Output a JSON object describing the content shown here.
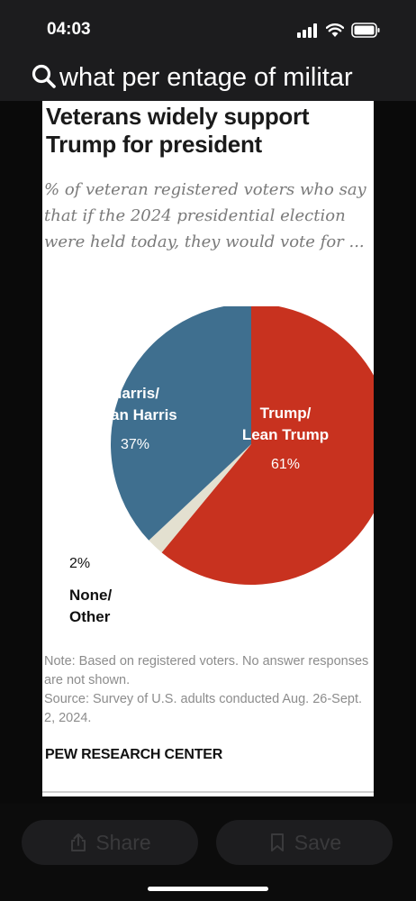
{
  "status": {
    "time": "04:03"
  },
  "search": {
    "query": "what per entage of militar"
  },
  "chart": {
    "title": "Veterans widely support Trump for president",
    "subtitle": "% of veteran registered voters who say that if the 2024 presidential election were held today, they would vote for ...",
    "note": "Note: Based on registered voters. No answer responses are not shown.",
    "source": "Source: Survey of U.S. adults conducted Aug. 26-Sept. 2, 2024.",
    "org": "PEW RESEARCH CENTER"
  },
  "chart_data": {
    "type": "pie",
    "slices": [
      {
        "label_line1": "Trump/",
        "label_line2": "Lean Trump",
        "value": 61,
        "display": "61%",
        "color": "#c8321f"
      },
      {
        "label_line1": "None/",
        "label_line2": "Other",
        "value": 2,
        "display": "2%",
        "color": "#e3e0d0"
      },
      {
        "label_line1": "Harris/",
        "label_line2": "Lean Harris",
        "value": 37,
        "display": "37%",
        "color": "#3f6f8f"
      }
    ]
  },
  "actions": {
    "share_label": "Share",
    "save_label": "Save"
  }
}
